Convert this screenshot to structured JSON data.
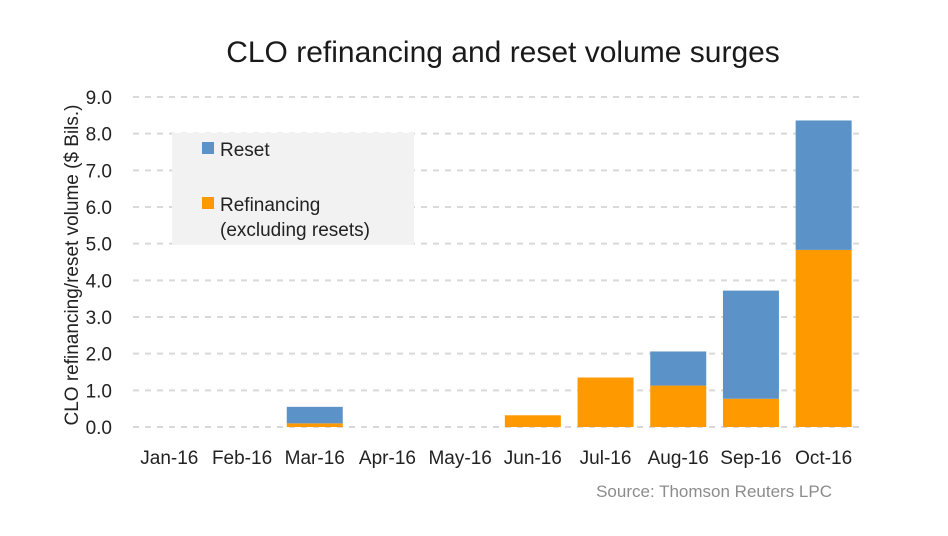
{
  "chart_data": {
    "type": "bar",
    "stacked": true,
    "title": "CLO refinancing and reset volume surges",
    "ylabel": "CLO refinancing/reset volume ($ Bils.)",
    "xlabel": "",
    "categories": [
      "Jan-16",
      "Feb-16",
      "Mar-16",
      "Apr-16",
      "May-16",
      "Jun-16",
      "Jul-16",
      "Aug-16",
      "Sep-16",
      "Oct-16"
    ],
    "ylim": [
      0,
      9
    ],
    "yticks": [
      "0.0",
      "1.0",
      "2.0",
      "3.0",
      "4.0",
      "5.0",
      "6.0",
      "7.0",
      "8.0",
      "9.0"
    ],
    "grid": true,
    "legend_position": "top-left",
    "series": [
      {
        "name": "Refinancing\n(excluding resets)",
        "legend_lines": [
          "Refinancing",
          "(excluding resets)"
        ],
        "color": "#ff9900",
        "values": [
          0,
          0,
          0.1,
          0,
          0,
          0.32,
          1.35,
          1.13,
          0.77,
          4.83
        ]
      },
      {
        "name": "Reset",
        "legend_lines": [
          "Reset"
        ],
        "color": "#5b93c9",
        "values": [
          0,
          0,
          0.45,
          0,
          0,
          0,
          0,
          0.93,
          2.95,
          3.53
        ]
      }
    ],
    "source": "Source: Thomson Reuters LPC"
  }
}
